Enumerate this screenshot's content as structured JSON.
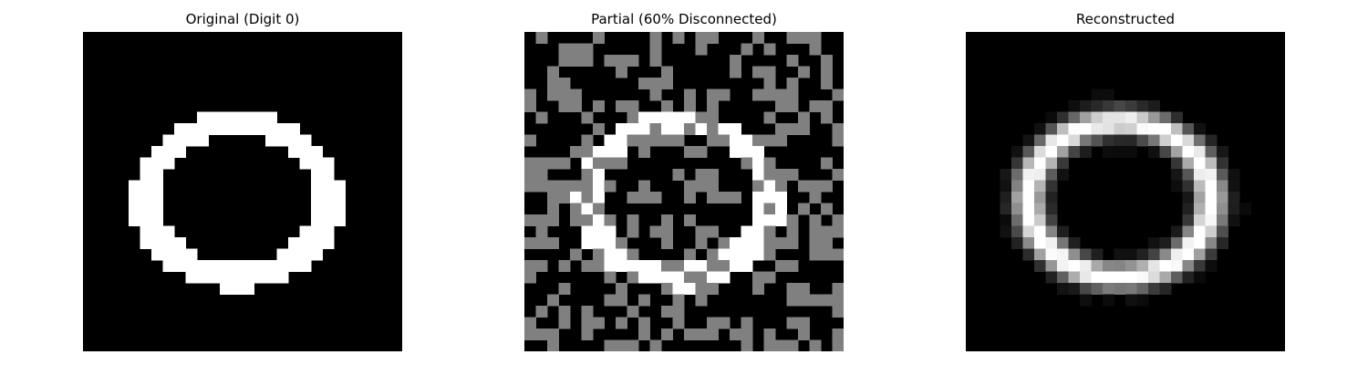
{
  "figure": {
    "panels": [
      {
        "id": "original",
        "title": "Original (Digit 0)",
        "style": "binary",
        "colors": {
          "off": "#000000",
          "on": "#ffffff"
        }
      },
      {
        "id": "partial",
        "title": "Partial (60% Disconnected)",
        "style": "masked-binary",
        "mask_fraction": 0.6,
        "colors": {
          "off": "#000000",
          "on": "#ffffff",
          "masked": "#808080"
        }
      },
      {
        "id": "reconstructed",
        "title": "Reconstructed",
        "style": "grayscale",
        "colors": {
          "low": "#000000",
          "high": "#ffffff"
        }
      }
    ],
    "digit_grid": {
      "size": 28,
      "label": "0"
    }
  }
}
